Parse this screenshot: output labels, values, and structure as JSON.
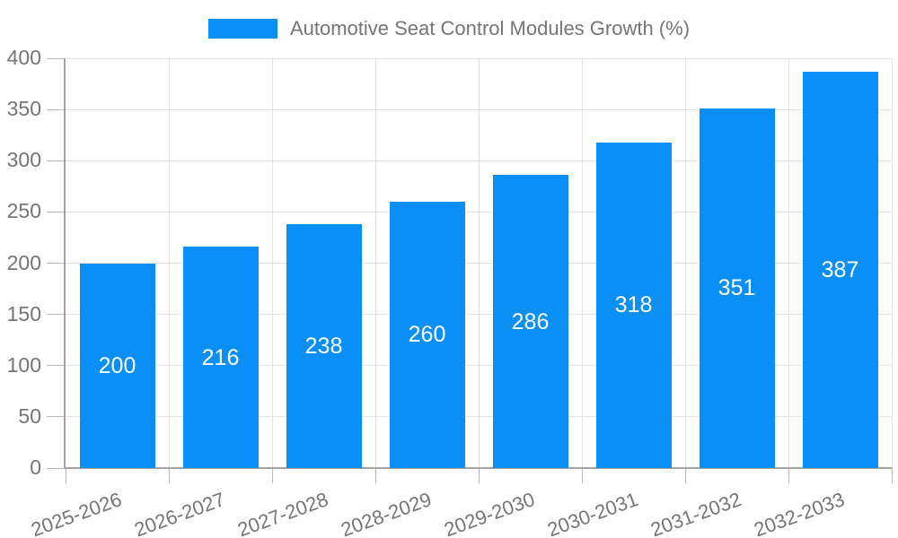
{
  "legend": {
    "label": "Automotive Seat Control Modules Growth (%)",
    "swatch_color": "#0a8ff7"
  },
  "chart_data": {
    "type": "bar",
    "title": "Automotive Seat Control Modules Growth (%)",
    "categories": [
      "2025-2026",
      "2026-2027",
      "2027-2028",
      "2028-2029",
      "2029-2030",
      "2030-2031",
      "2031-2032",
      "2032-2033"
    ],
    "values": [
      200,
      216,
      238,
      260,
      286,
      318,
      351,
      387
    ],
    "xlabel": "",
    "ylabel": "",
    "ylim": [
      0,
      400
    ],
    "yticks": [
      0,
      50,
      100,
      150,
      200,
      250,
      300,
      350,
      400
    ],
    "grid": true,
    "legend_position": "top-center",
    "x_label_rotation_deg": -20,
    "bar_color": "#0a8ff7",
    "bar_value_label_color": "#ffffff",
    "axis_text_color": "#757575",
    "gridline_color": "#e4e4e4",
    "axis_line_color": "#a3a3a3",
    "tick_color": "#b8b8b8"
  }
}
